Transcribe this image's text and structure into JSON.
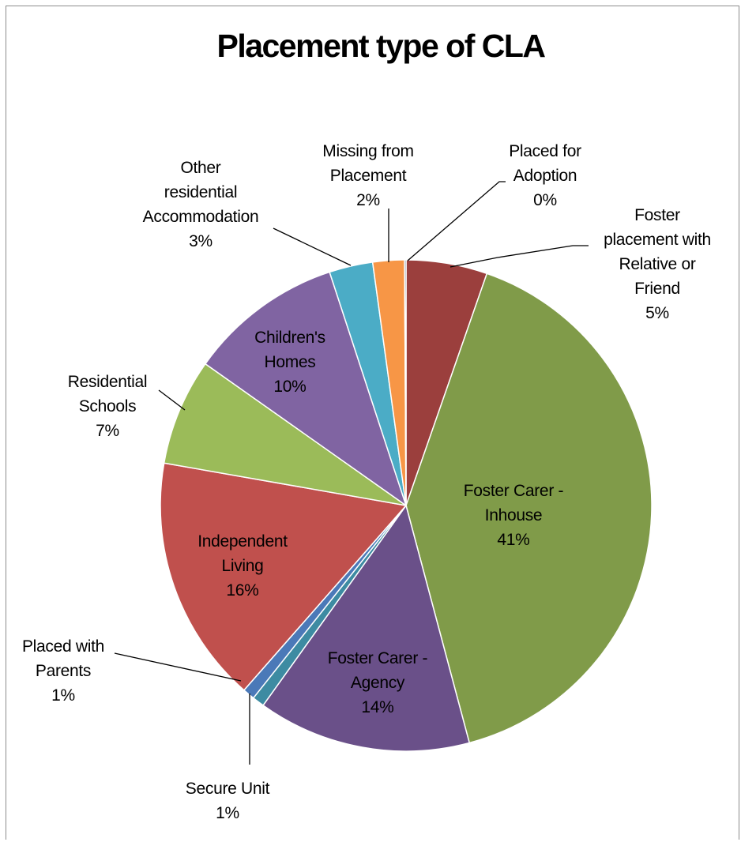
{
  "chart_data": {
    "type": "pie",
    "title": "Placement type of CLA",
    "slices": [
      {
        "label_lines": [
          "Foster",
          "placement with",
          "Relative or",
          "Friend"
        ],
        "percent_label": "5%",
        "value": 5.4,
        "color": "#9b3f3d"
      },
      {
        "label_lines": [
          "Foster Carer -",
          "Inhouse"
        ],
        "percent_label": "41%",
        "value": 41.0,
        "color": "#809b49"
      },
      {
        "label_lines": [
          "Foster Carer -",
          "Agency"
        ],
        "percent_label": "14%",
        "value": 14.2,
        "color": "#6a5089"
      },
      {
        "label_lines": [
          "Secure Unit"
        ],
        "percent_label": "1%",
        "value": 0.8,
        "color": "#3d8ba2"
      },
      {
        "label_lines": [
          "Placed with",
          "Parents"
        ],
        "percent_label": "1%",
        "value": 0.8,
        "color": "#4b79b8"
      },
      {
        "label_lines": [
          "Independent",
          "Living"
        ],
        "percent_label": "16%",
        "value": 16.5,
        "color": "#c0504d"
      },
      {
        "label_lines": [
          "Residential",
          "Schools"
        ],
        "percent_label": "7%",
        "value": 7.1,
        "color": "#9bbb59"
      },
      {
        "label_lines": [
          "Children's",
          "Homes"
        ],
        "percent_label": "10%",
        "value": 10.3,
        "color": "#8064a2"
      },
      {
        "label_lines": [
          "Other",
          "residential",
          "Accommodation"
        ],
        "percent_label": "3%",
        "value": 2.9,
        "color": "#4bacc6"
      },
      {
        "label_lines": [
          "Missing from",
          "Placement"
        ],
        "percent_label": "2%",
        "value": 2.1,
        "color": "#f79646"
      },
      {
        "label_lines": [
          "Placed for",
          "Adoption"
        ],
        "percent_label": "0%",
        "value": 0.1,
        "color": "#2c4d75"
      }
    ]
  }
}
